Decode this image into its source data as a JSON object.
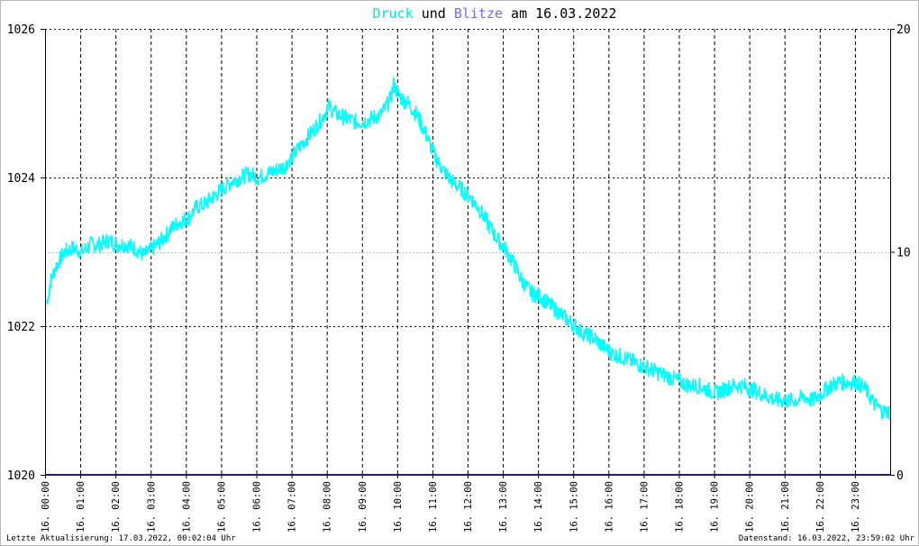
{
  "chart_data": {
    "type": "line",
    "title_parts": [
      {
        "text": "Druck",
        "color": "#00e5e5"
      },
      {
        "text": " und ",
        "color": "#000000"
      },
      {
        "text": "Blitze",
        "color": "#7b68ee"
      },
      {
        "text": " am 16.03.2022",
        "color": "#000000"
      }
    ],
    "x_ticks": [
      "16. 00:00",
      "16. 01:00",
      "16. 02:00",
      "16. 03:00",
      "16. 04:00",
      "16. 05:00",
      "16. 06:00",
      "16. 07:00",
      "16. 08:00",
      "16. 09:00",
      "16. 10:00",
      "16. 11:00",
      "16. 12:00",
      "16. 13:00",
      "16. 14:00",
      "16. 15:00",
      "16. 16:00",
      "16. 17:00",
      "16. 18:00",
      "16. 19:00",
      "16. 20:00",
      "16. 21:00",
      "16. 22:00",
      "16. 23:00"
    ],
    "y_left": {
      "range": [
        1020,
        1026
      ],
      "ticks": [
        "1020",
        "1022",
        "1024",
        "1026"
      ],
      "minor_gridline": 1023
    },
    "y_right": {
      "range": [
        0,
        20
      ],
      "ticks": [
        "0",
        "10",
        "20"
      ]
    },
    "grid": true,
    "series": [
      {
        "name": "Druck",
        "color": "#00ffff",
        "axis": "left",
        "x_hours": [
          0,
          0.1,
          0.25,
          0.5,
          0.75,
          1,
          1.25,
          1.5,
          1.75,
          2,
          2.25,
          2.5,
          2.75,
          3,
          3.25,
          3.5,
          3.75,
          4,
          4.25,
          4.5,
          4.75,
          5,
          5.25,
          5.5,
          5.75,
          6,
          6.25,
          6.5,
          6.75,
          7,
          7.25,
          7.5,
          7.75,
          8,
          8.25,
          8.5,
          8.75,
          9,
          9.25,
          9.5,
          9.75,
          9.85,
          10,
          10.25,
          10.5,
          10.75,
          11,
          11.25,
          11.5,
          11.75,
          12,
          12.25,
          12.5,
          12.75,
          13,
          13.25,
          13.5,
          13.75,
          14,
          14.25,
          14.5,
          14.75,
          15,
          15.25,
          15.5,
          15.75,
          16,
          16.25,
          16.5,
          16.75,
          17,
          17.25,
          17.5,
          17.75,
          18,
          18.25,
          18.5,
          18.75,
          19,
          19.25,
          19.5,
          19.75,
          20,
          20.25,
          20.5,
          20.75,
          21,
          21.25,
          21.5,
          21.75,
          22,
          22.25,
          22.5,
          22.75,
          23,
          23.25,
          23.5,
          23.75,
          23.95
        ],
        "values": [
          1022.3,
          1022.6,
          1022.8,
          1023.0,
          1023.05,
          1023.0,
          1023.1,
          1023.1,
          1023.15,
          1023.1,
          1023.1,
          1023.05,
          1022.95,
          1023.05,
          1023.15,
          1023.3,
          1023.4,
          1023.45,
          1023.6,
          1023.65,
          1023.75,
          1023.85,
          1023.95,
          1024.0,
          1024.05,
          1024.0,
          1024.05,
          1024.1,
          1024.15,
          1024.3,
          1024.45,
          1024.6,
          1024.75,
          1024.95,
          1024.85,
          1024.8,
          1024.75,
          1024.75,
          1024.8,
          1024.85,
          1025.05,
          1025.25,
          1025.1,
          1025.0,
          1024.85,
          1024.6,
          1024.3,
          1024.1,
          1023.95,
          1023.85,
          1023.75,
          1023.6,
          1023.4,
          1023.2,
          1023.05,
          1022.85,
          1022.6,
          1022.45,
          1022.4,
          1022.3,
          1022.2,
          1022.1,
          1022.0,
          1021.9,
          1021.85,
          1021.75,
          1021.65,
          1021.6,
          1021.55,
          1021.5,
          1021.45,
          1021.4,
          1021.35,
          1021.3,
          1021.25,
          1021.2,
          1021.2,
          1021.15,
          1021.1,
          1021.15,
          1021.2,
          1021.2,
          1021.15,
          1021.1,
          1021.05,
          1021.0,
          1021.0,
          1021.0,
          1021.05,
          1021.0,
          1021.1,
          1021.2,
          1021.25,
          1021.25,
          1021.25,
          1021.15,
          1020.95,
          1020.85,
          1020.85
        ]
      },
      {
        "name": "Blitze",
        "color": "#1f1f7a",
        "axis": "right",
        "x_hours": [
          0,
          24
        ],
        "values": [
          0,
          0
        ]
      }
    ]
  },
  "footer": {
    "left": "Letzte Aktualisierung: 17.03.2022, 00:02:04 Uhr",
    "right": "Datenstand: 16.03.2022, 23:59:02 Uhr"
  }
}
